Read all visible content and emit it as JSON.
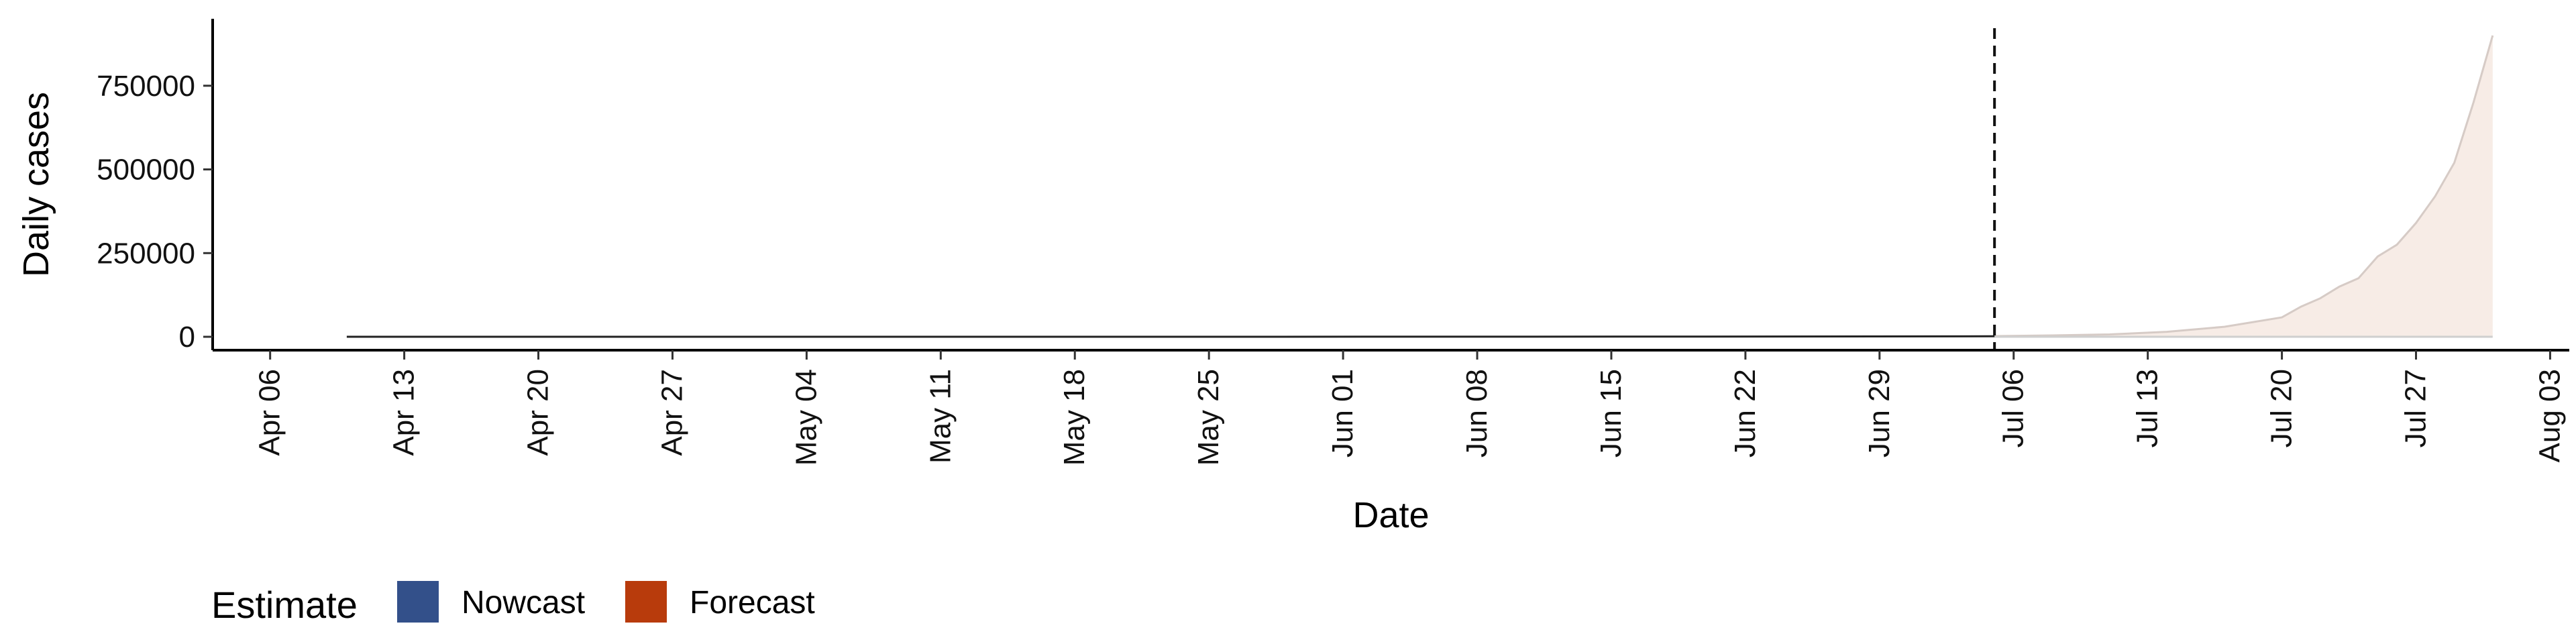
{
  "chart_data": {
    "type": "area",
    "xlabel": "Date",
    "ylabel": "Daily cases",
    "x_ticks": [
      "2020-04-06",
      "2020-04-13",
      "2020-04-20",
      "2020-04-27",
      "2020-05-04",
      "2020-05-11",
      "2020-05-18",
      "2020-05-25",
      "2020-06-01",
      "2020-06-08",
      "2020-06-15",
      "2020-06-22",
      "2020-06-29",
      "2020-07-06",
      "2020-07-13",
      "2020-07-20",
      "2020-07-27",
      "2020-08-03"
    ],
    "x_tick_labels": [
      "Apr 06",
      "Apr 13",
      "Apr 20",
      "Apr 27",
      "May 04",
      "May 11",
      "May 18",
      "May 25",
      "Jun 01",
      "Jun 08",
      "Jun 15",
      "Jun 22",
      "Jun 29",
      "Jul 06",
      "Jul 13",
      "Jul 20",
      "Jul 27",
      "Aug 03"
    ],
    "xlim": [
      "2020-04-03",
      "2020-08-04"
    ],
    "y_ticks": [
      0,
      250000,
      500000,
      750000
    ],
    "y_tick_labels": [
      "0",
      "250000",
      "500000",
      "750000"
    ],
    "ylim": [
      -40000,
      950000
    ],
    "nowcast_end": "2020-07-05",
    "grid": false,
    "legend": {
      "title": "Estimate",
      "placement": "bottom-left",
      "items": [
        {
          "label": "Nowcast",
          "color": "#33508a"
        },
        {
          "label": "Forecast",
          "color": "#b83b0c"
        }
      ]
    },
    "colors": {
      "nowcast_line": "#222222",
      "forecast_line": "#d6cbc6",
      "forecast_fill": "#f7ece6",
      "ribbon_lower": "#cfcfcf",
      "cutoff_line": "#111111"
    },
    "series": [
      {
        "name": "Nowcast",
        "x": [
          "2020-04-10",
          "2020-05-01",
          "2020-05-20",
          "2020-06-08",
          "2020-06-20",
          "2020-07-05"
        ],
        "values": [
          0,
          0,
          0,
          200,
          600,
          1500
        ]
      },
      {
        "name": "Forecast",
        "x": [
          "2020-07-05",
          "2020-07-08",
          "2020-07-11",
          "2020-07-14",
          "2020-07-17",
          "2020-07-20",
          "2020-07-21",
          "2020-07-22",
          "2020-07-23",
          "2020-07-24",
          "2020-07-25",
          "2020-07-26",
          "2020-07-27",
          "2020-07-28",
          "2020-07-29",
          "2020-07-30",
          "2020-07-31"
        ],
        "upper": [
          2000,
          4000,
          7000,
          15000,
          30000,
          58000,
          90000,
          115000,
          150000,
          175000,
          240000,
          275000,
          340000,
          420000,
          520000,
          700000,
          900000
        ],
        "lower": [
          0,
          0,
          0,
          0,
          0,
          0,
          0,
          0,
          0,
          0,
          0,
          0,
          0,
          0,
          0,
          0,
          0
        ]
      }
    ]
  }
}
